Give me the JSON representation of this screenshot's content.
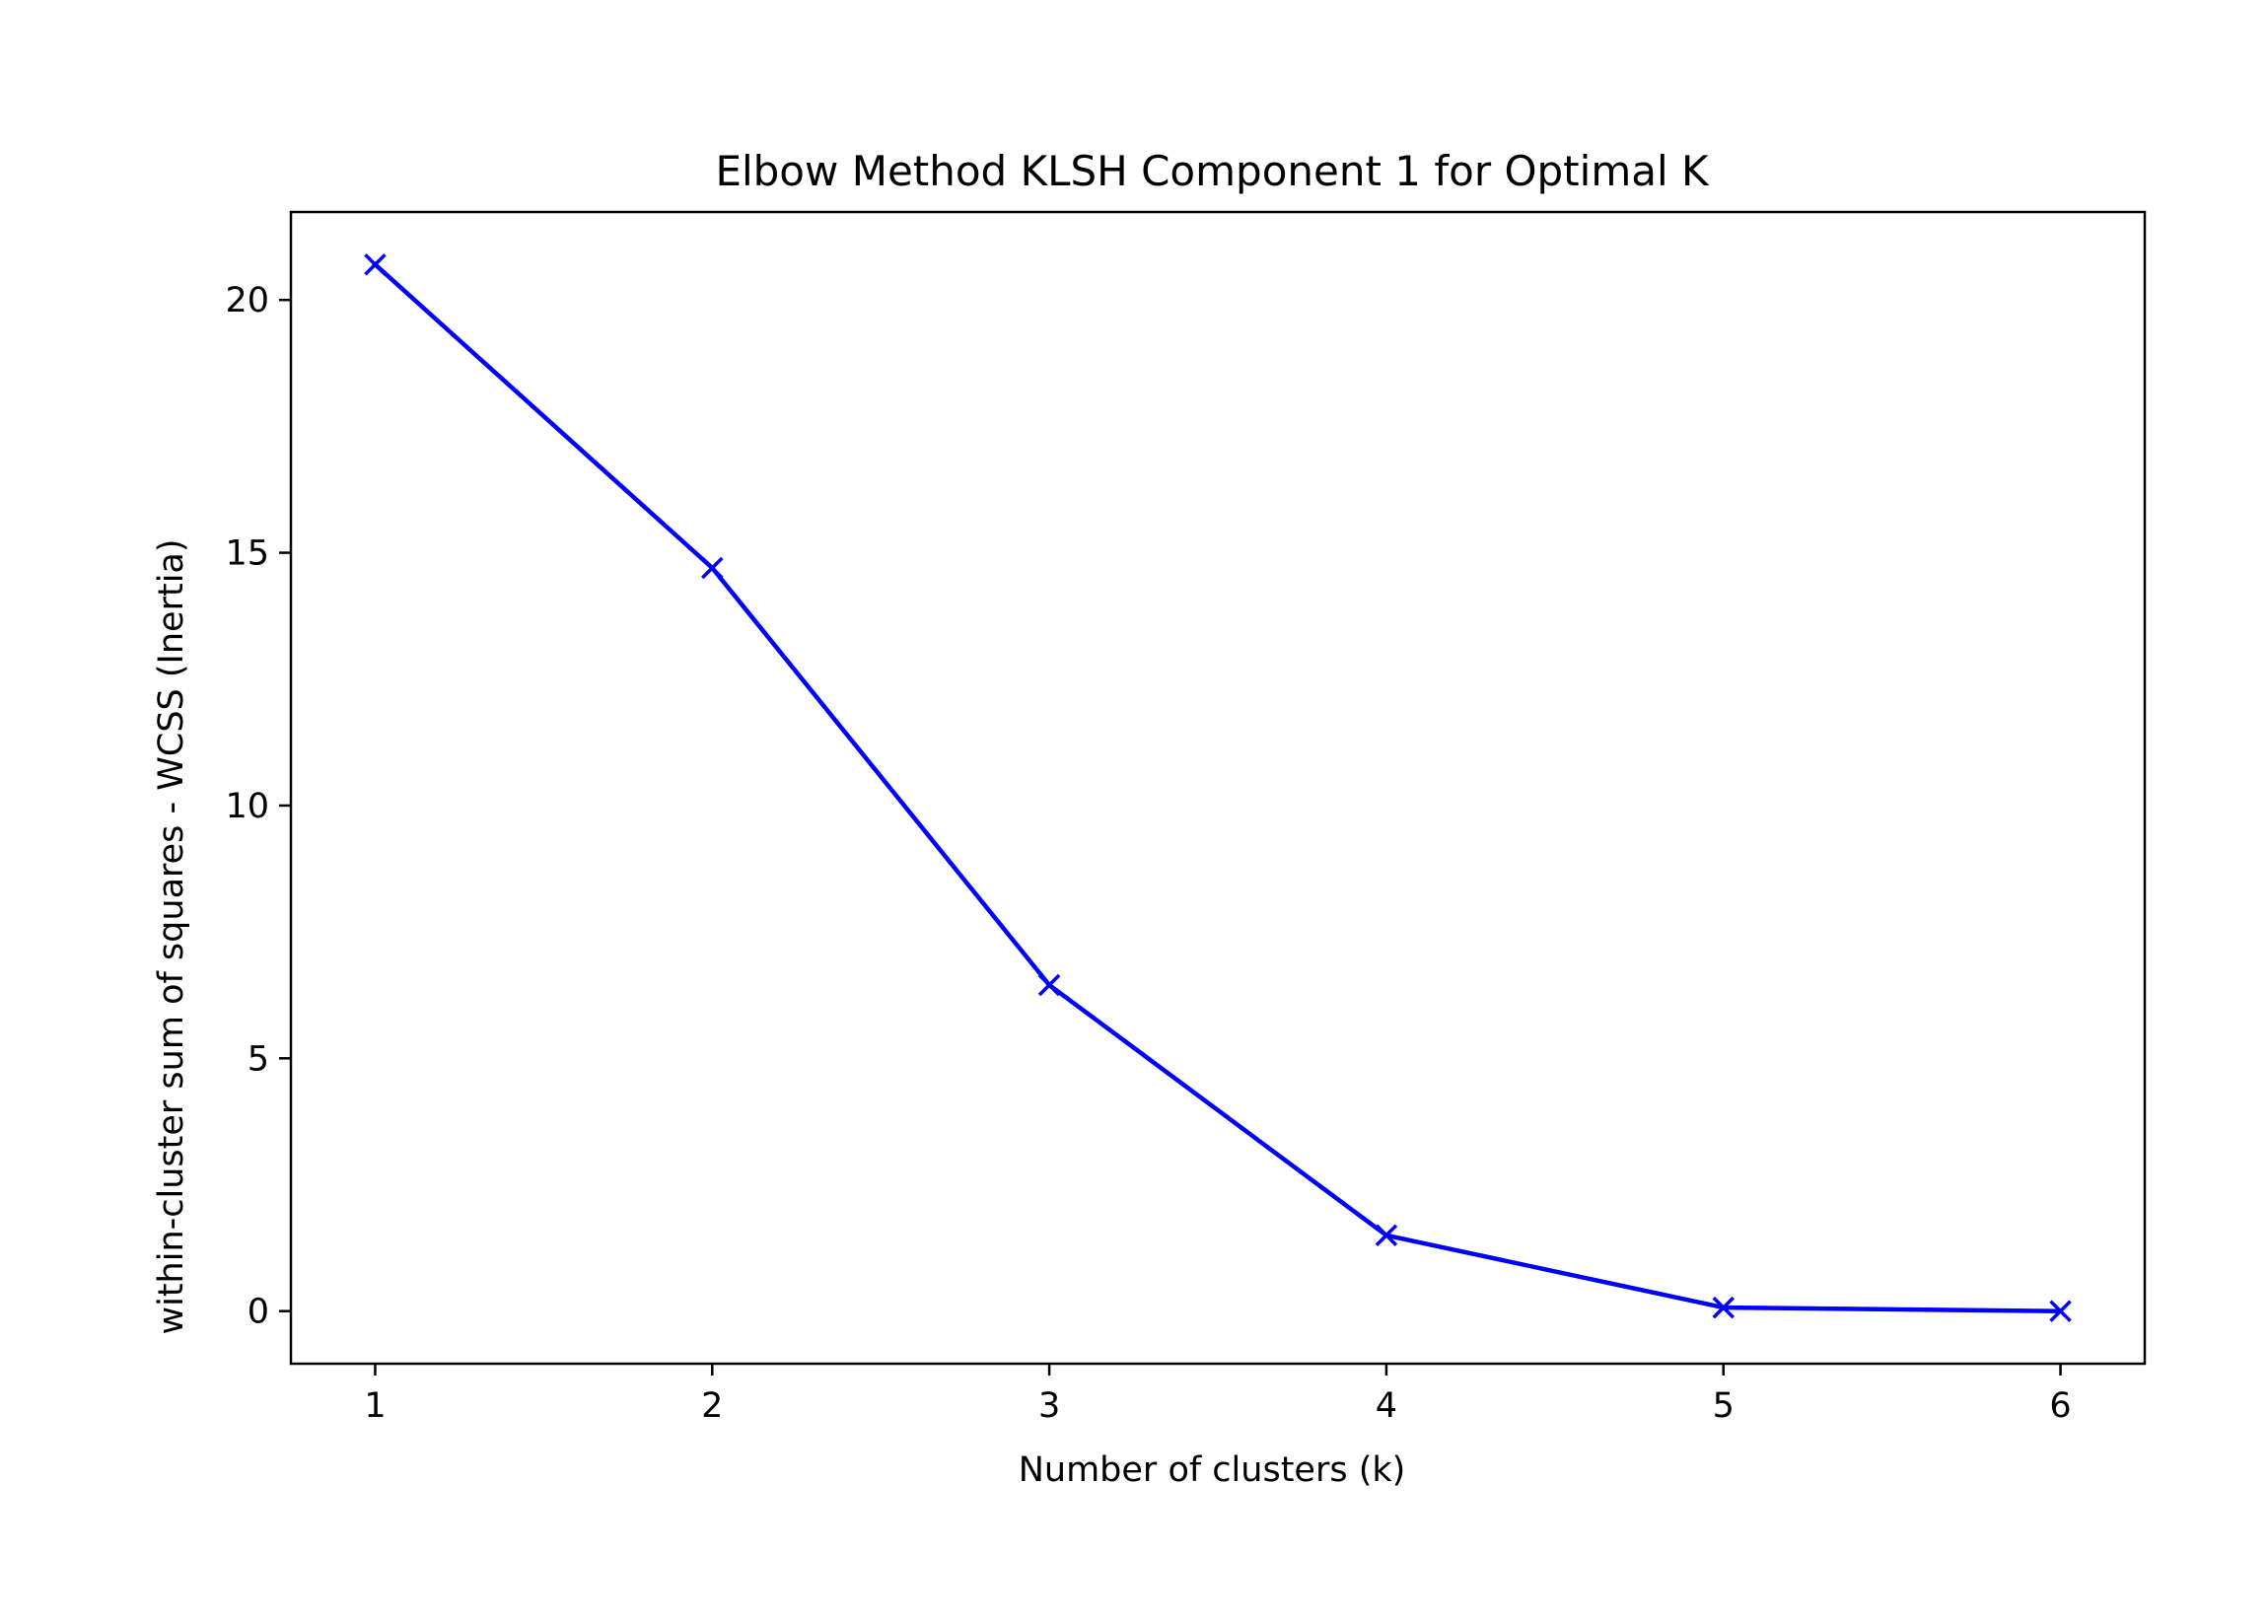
{
  "chart_data": {
    "type": "line",
    "title": "Elbow Method KLSH Component 1 for Optimal K",
    "xlabel": "Number of clusters (k)",
    "ylabel": "within-cluster sum of squares - WCSS (Inertia)",
    "x": [
      1,
      2,
      3,
      4,
      5,
      6
    ],
    "series": [
      {
        "values": [
          20.7,
          14.7,
          6.45,
          1.5,
          0.07,
          0.0
        ],
        "color": "#0000ff",
        "marker": "x",
        "line_style": "solid"
      }
    ],
    "xlim": [
      0.75,
      6.25
    ],
    "ylim": [
      -1.04,
      21.74
    ],
    "xticks": [
      1,
      2,
      3,
      4,
      5,
      6
    ],
    "xtick_labels": [
      "1",
      "2",
      "3",
      "4",
      "5",
      "6"
    ],
    "yticks": [
      0,
      5,
      10,
      15,
      20
    ],
    "ytick_labels": [
      "0",
      "5",
      "10",
      "15",
      "20"
    ],
    "grid": false,
    "legend": "none"
  }
}
